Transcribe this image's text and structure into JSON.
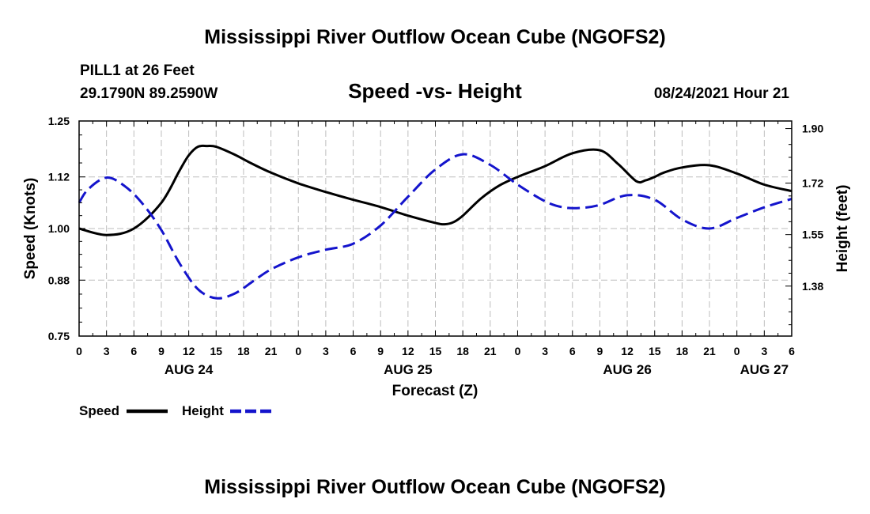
{
  "chart_data": {
    "type": "line",
    "title": "Mississippi River Outflow Ocean Cube (NGOFS2)",
    "footer_title": "Mississippi River Outflow Ocean Cube (NGOFS2)",
    "subtitle": "Speed -vs- Height",
    "station": "PILL1 at 26 Feet",
    "coordinates": "29.1790N  89.2590W",
    "timestamp": "08/24/2021 Hour 21",
    "xlabel": "Forecast (Z)",
    "ylabel_left": "Speed (Knots)",
    "ylabel_right": "Height (feet)",
    "x_unit": "hours from Aug 24 00Z",
    "xlim": [
      0,
      78
    ],
    "x_ticks": [
      0,
      3,
      6,
      9,
      12,
      15,
      18,
      21,
      24,
      27,
      30,
      33,
      36,
      39,
      42,
      45,
      48,
      51,
      54,
      57,
      60,
      63,
      66,
      69,
      72,
      75,
      78
    ],
    "x_tick_labels": [
      "0",
      "3",
      "6",
      "9",
      "12",
      "15",
      "18",
      "21",
      "0",
      "3",
      "6",
      "9",
      "12",
      "15",
      "18",
      "21",
      "0",
      "3",
      "6",
      "9",
      "12",
      "15",
      "18",
      "21",
      "0",
      "3",
      "6"
    ],
    "day_labels": [
      {
        "x": 12,
        "label": "AUG 24"
      },
      {
        "x": 36,
        "label": "AUG 25"
      },
      {
        "x": 60,
        "label": "AUG 26"
      },
      {
        "x": 75,
        "label": "AUG 27"
      }
    ],
    "ylim_left": [
      0.75,
      1.25
    ],
    "y_ticks_left": [
      0.75,
      0.88,
      1.0,
      1.12,
      1.25
    ],
    "y_tick_labels_left": [
      "0.75",
      "0.88",
      "1.00",
      "1.12",
      "1.25"
    ],
    "ylim_right": [
      1.215,
      1.925
    ],
    "y_ticks_right": [
      1.38,
      1.55,
      1.72,
      1.9
    ],
    "y_tick_labels_right": [
      "1.38",
      "1.55",
      "1.72",
      "1.90"
    ],
    "grid": true,
    "legend_position": "bottom-left",
    "series": [
      {
        "name": "Speed",
        "axis": "left",
        "color": "#000000",
        "dash": "solid",
        "x": [
          0,
          3,
          6,
          9,
          11,
          12,
          13,
          14,
          15,
          17,
          19,
          21,
          24,
          27,
          30,
          33,
          36,
          39,
          40,
          41,
          42,
          44,
          46,
          48,
          51,
          54,
          57,
          59,
          61,
          62,
          63,
          64,
          66,
          69,
          72,
          75,
          78
        ],
        "y": [
          1.0,
          0.985,
          1.0,
          1.06,
          1.135,
          1.17,
          1.19,
          1.192,
          1.19,
          1.172,
          1.15,
          1.13,
          1.105,
          1.085,
          1.067,
          1.05,
          1.03,
          1.013,
          1.01,
          1.015,
          1.03,
          1.07,
          1.1,
          1.12,
          1.145,
          1.175,
          1.182,
          1.15,
          1.11,
          1.112,
          1.12,
          1.13,
          1.142,
          1.147,
          1.128,
          1.102,
          1.087
        ]
      },
      {
        "name": "Height",
        "axis": "right",
        "color": "#1414cc",
        "dash": "dashed",
        "x": [
          0,
          1,
          3,
          5,
          7,
          9,
          11,
          13,
          15,
          17,
          19,
          21,
          24,
          27,
          30,
          33,
          36,
          39,
          42,
          45,
          48,
          51,
          53,
          55,
          57,
          60,
          63,
          66,
          69,
          72,
          75,
          78
        ],
        "y": [
          1.655,
          1.7,
          1.738,
          1.71,
          1.65,
          1.565,
          1.455,
          1.37,
          1.34,
          1.355,
          1.395,
          1.435,
          1.475,
          1.5,
          1.52,
          1.58,
          1.675,
          1.765,
          1.815,
          1.78,
          1.715,
          1.66,
          1.64,
          1.638,
          1.648,
          1.68,
          1.665,
          1.6,
          1.57,
          1.605,
          1.64,
          1.668
        ]
      }
    ]
  }
}
